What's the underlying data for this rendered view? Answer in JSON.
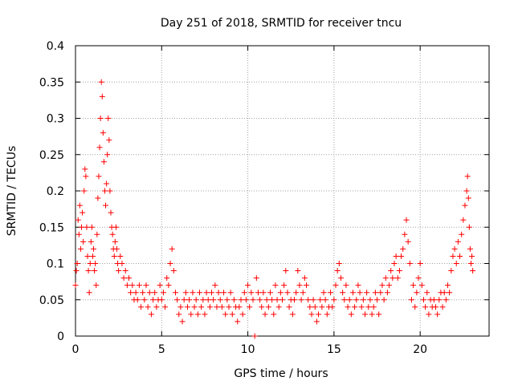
{
  "chart_data": {
    "type": "scatter",
    "title": "Day 251 of 2018, SRMTID for receiver tncu",
    "xlabel": "GPS time / hours",
    "ylabel": "SRMTID / TECUs",
    "xlim": [
      0,
      24
    ],
    "ylim": [
      0,
      0.4
    ],
    "xticks": [
      0,
      5,
      10,
      15,
      20
    ],
    "xtick_labels": [
      "0",
      "5",
      "10",
      "15",
      "20"
    ],
    "yticks": [
      0,
      0.05,
      0.1,
      0.15,
      0.2,
      0.25,
      0.3,
      0.35,
      0.4
    ],
    "ytick_labels": [
      "0",
      "0.05",
      "0.1",
      "0.15",
      "0.2",
      "0.25",
      "0.3",
      "0.35",
      "0.4"
    ],
    "grid": true,
    "marker": "plus",
    "color": "#ff0000",
    "series": [
      {
        "name": "SRMTID",
        "points": [
          [
            0.0,
            0.07
          ],
          [
            0.05,
            0.09
          ],
          [
            0.1,
            0.1
          ],
          [
            0.15,
            0.16
          ],
          [
            0.2,
            0.14
          ],
          [
            0.25,
            0.18
          ],
          [
            0.3,
            0.12
          ],
          [
            0.35,
            0.15
          ],
          [
            0.4,
            0.17
          ],
          [
            0.45,
            0.13
          ],
          [
            0.5,
            0.2
          ],
          [
            0.55,
            0.23
          ],
          [
            0.6,
            0.22
          ],
          [
            0.65,
            0.15
          ],
          [
            0.7,
            0.11
          ],
          [
            0.75,
            0.09
          ],
          [
            0.8,
            0.06
          ],
          [
            0.85,
            0.1
          ],
          [
            0.9,
            0.13
          ],
          [
            0.95,
            0.15
          ],
          [
            1.0,
            0.11
          ],
          [
            1.05,
            0.12
          ],
          [
            1.1,
            0.09
          ],
          [
            1.15,
            0.1
          ],
          [
            1.2,
            0.07
          ],
          [
            1.25,
            0.14
          ],
          [
            1.3,
            0.19
          ],
          [
            1.35,
            0.22
          ],
          [
            1.4,
            0.26
          ],
          [
            1.45,
            0.3
          ],
          [
            1.5,
            0.35
          ],
          [
            1.55,
            0.33
          ],
          [
            1.6,
            0.28
          ],
          [
            1.65,
            0.24
          ],
          [
            1.7,
            0.2
          ],
          [
            1.75,
            0.18
          ],
          [
            1.8,
            0.21
          ],
          [
            1.85,
            0.25
          ],
          [
            1.9,
            0.3
          ],
          [
            1.95,
            0.27
          ],
          [
            2.0,
            0.2
          ],
          [
            2.05,
            0.17
          ],
          [
            2.1,
            0.15
          ],
          [
            2.15,
            0.14
          ],
          [
            2.2,
            0.12
          ],
          [
            2.25,
            0.11
          ],
          [
            2.3,
            0.13
          ],
          [
            2.35,
            0.15
          ],
          [
            2.4,
            0.12
          ],
          [
            2.45,
            0.1
          ],
          [
            2.5,
            0.09
          ],
          [
            2.6,
            0.11
          ],
          [
            2.7,
            0.1
          ],
          [
            2.8,
            0.08
          ],
          [
            2.9,
            0.09
          ],
          [
            3.0,
            0.07
          ],
          [
            3.1,
            0.08
          ],
          [
            3.2,
            0.06
          ],
          [
            3.3,
            0.07
          ],
          [
            3.4,
            0.05
          ],
          [
            3.5,
            0.06
          ],
          [
            3.6,
            0.05
          ],
          [
            3.7,
            0.07
          ],
          [
            3.8,
            0.04
          ],
          [
            3.9,
            0.06
          ],
          [
            4.0,
            0.05
          ],
          [
            4.1,
            0.07
          ],
          [
            4.2,
            0.04
          ],
          [
            4.3,
            0.06
          ],
          [
            4.4,
            0.03
          ],
          [
            4.5,
            0.05
          ],
          [
            4.6,
            0.06
          ],
          [
            4.7,
            0.04
          ],
          [
            4.8,
            0.05
          ],
          [
            4.9,
            0.07
          ],
          [
            5.0,
            0.05
          ],
          [
            5.1,
            0.06
          ],
          [
            5.2,
            0.04
          ],
          [
            5.3,
            0.08
          ],
          [
            5.4,
            0.07
          ],
          [
            5.5,
            0.1
          ],
          [
            5.6,
            0.12
          ],
          [
            5.7,
            0.09
          ],
          [
            5.8,
            0.06
          ],
          [
            5.9,
            0.05
          ],
          [
            6.0,
            0.03
          ],
          [
            6.1,
            0.04
          ],
          [
            6.2,
            0.02
          ],
          [
            6.3,
            0.05
          ],
          [
            6.4,
            0.06
          ],
          [
            6.5,
            0.04
          ],
          [
            6.6,
            0.05
          ],
          [
            6.7,
            0.03
          ],
          [
            6.8,
            0.06
          ],
          [
            6.9,
            0.04
          ],
          [
            7.0,
            0.05
          ],
          [
            7.1,
            0.03
          ],
          [
            7.2,
            0.06
          ],
          [
            7.3,
            0.04
          ],
          [
            7.4,
            0.05
          ],
          [
            7.5,
            0.03
          ],
          [
            7.6,
            0.06
          ],
          [
            7.7,
            0.05
          ],
          [
            7.8,
            0.04
          ],
          [
            7.9,
            0.06
          ],
          [
            8.0,
            0.05
          ],
          [
            8.1,
            0.07
          ],
          [
            8.2,
            0.04
          ],
          [
            8.3,
            0.06
          ],
          [
            8.4,
            0.05
          ],
          [
            8.5,
            0.04
          ],
          [
            8.6,
            0.06
          ],
          [
            8.7,
            0.03
          ],
          [
            8.8,
            0.05
          ],
          [
            8.9,
            0.04
          ],
          [
            9.0,
            0.06
          ],
          [
            9.1,
            0.03
          ],
          [
            9.2,
            0.05
          ],
          [
            9.3,
            0.04
          ],
          [
            9.4,
            0.02
          ],
          [
            9.5,
            0.04
          ],
          [
            9.6,
            0.05
          ],
          [
            9.7,
            0.03
          ],
          [
            9.8,
            0.06
          ],
          [
            9.9,
            0.05
          ],
          [
            10.0,
            0.07
          ],
          [
            10.1,
            0.04
          ],
          [
            10.2,
            0.06
          ],
          [
            10.3,
            0.05
          ],
          [
            10.4,
            0.0
          ],
          [
            10.5,
            0.08
          ],
          [
            10.6,
            0.06
          ],
          [
            10.7,
            0.05
          ],
          [
            10.8,
            0.04
          ],
          [
            10.9,
            0.06
          ],
          [
            11.0,
            0.03
          ],
          [
            11.1,
            0.05
          ],
          [
            11.2,
            0.04
          ],
          [
            11.3,
            0.06
          ],
          [
            11.4,
            0.05
          ],
          [
            11.5,
            0.03
          ],
          [
            11.6,
            0.07
          ],
          [
            11.7,
            0.05
          ],
          [
            11.8,
            0.04
          ],
          [
            11.9,
            0.06
          ],
          [
            12.0,
            0.05
          ],
          [
            12.1,
            0.07
          ],
          [
            12.2,
            0.09
          ],
          [
            12.3,
            0.06
          ],
          [
            12.4,
            0.04
          ],
          [
            12.5,
            0.05
          ],
          [
            12.6,
            0.03
          ],
          [
            12.7,
            0.05
          ],
          [
            12.8,
            0.06
          ],
          [
            12.9,
            0.09
          ],
          [
            13.0,
            0.07
          ],
          [
            13.1,
            0.05
          ],
          [
            13.2,
            0.06
          ],
          [
            13.3,
            0.08
          ],
          [
            13.4,
            0.07
          ],
          [
            13.5,
            0.05
          ],
          [
            13.6,
            0.04
          ],
          [
            13.7,
            0.03
          ],
          [
            13.8,
            0.05
          ],
          [
            13.9,
            0.04
          ],
          [
            14.0,
            0.02
          ],
          [
            14.1,
            0.03
          ],
          [
            14.2,
            0.05
          ],
          [
            14.3,
            0.04
          ],
          [
            14.4,
            0.06
          ],
          [
            14.5,
            0.05
          ],
          [
            14.6,
            0.03
          ],
          [
            14.7,
            0.04
          ],
          [
            14.8,
            0.06
          ],
          [
            14.9,
            0.04
          ],
          [
            15.0,
            0.05
          ],
          [
            15.1,
            0.07
          ],
          [
            15.2,
            0.09
          ],
          [
            15.3,
            0.1
          ],
          [
            15.4,
            0.08
          ],
          [
            15.5,
            0.06
          ],
          [
            15.6,
            0.05
          ],
          [
            15.7,
            0.07
          ],
          [
            15.8,
            0.04
          ],
          [
            15.9,
            0.05
          ],
          [
            16.0,
            0.03
          ],
          [
            16.1,
            0.06
          ],
          [
            16.2,
            0.04
          ],
          [
            16.3,
            0.05
          ],
          [
            16.4,
            0.07
          ],
          [
            16.5,
            0.06
          ],
          [
            16.6,
            0.04
          ],
          [
            16.7,
            0.05
          ],
          [
            16.8,
            0.03
          ],
          [
            16.9,
            0.06
          ],
          [
            17.0,
            0.04
          ],
          [
            17.1,
            0.05
          ],
          [
            17.2,
            0.03
          ],
          [
            17.3,
            0.04
          ],
          [
            17.4,
            0.06
          ],
          [
            17.5,
            0.05
          ],
          [
            17.6,
            0.03
          ],
          [
            17.7,
            0.06
          ],
          [
            17.8,
            0.07
          ],
          [
            17.9,
            0.05
          ],
          [
            18.0,
            0.08
          ],
          [
            18.1,
            0.06
          ],
          [
            18.2,
            0.07
          ],
          [
            18.3,
            0.09
          ],
          [
            18.4,
            0.08
          ],
          [
            18.5,
            0.1
          ],
          [
            18.6,
            0.11
          ],
          [
            18.7,
            0.08
          ],
          [
            18.8,
            0.09
          ],
          [
            18.9,
            0.11
          ],
          [
            19.0,
            0.12
          ],
          [
            19.1,
            0.14
          ],
          [
            19.2,
            0.16
          ],
          [
            19.3,
            0.13
          ],
          [
            19.4,
            0.1
          ],
          [
            19.5,
            0.05
          ],
          [
            19.6,
            0.07
          ],
          [
            19.7,
            0.04
          ],
          [
            19.8,
            0.06
          ],
          [
            19.9,
            0.08
          ],
          [
            20.0,
            0.1
          ],
          [
            20.1,
            0.07
          ],
          [
            20.2,
            0.05
          ],
          [
            20.3,
            0.04
          ],
          [
            20.4,
            0.06
          ],
          [
            20.5,
            0.03
          ],
          [
            20.6,
            0.05
          ],
          [
            20.7,
            0.04
          ],
          [
            20.8,
            0.05
          ],
          [
            20.9,
            0.04
          ],
          [
            21.0,
            0.03
          ],
          [
            21.1,
            0.05
          ],
          [
            21.2,
            0.06
          ],
          [
            21.3,
            0.04
          ],
          [
            21.4,
            0.06
          ],
          [
            21.5,
            0.05
          ],
          [
            21.6,
            0.07
          ],
          [
            21.7,
            0.06
          ],
          [
            21.8,
            0.09
          ],
          [
            21.9,
            0.11
          ],
          [
            22.0,
            0.12
          ],
          [
            22.1,
            0.1
          ],
          [
            22.2,
            0.13
          ],
          [
            22.3,
            0.11
          ],
          [
            22.4,
            0.14
          ],
          [
            22.5,
            0.16
          ],
          [
            22.6,
            0.18
          ],
          [
            22.7,
            0.2
          ],
          [
            22.75,
            0.22
          ],
          [
            22.8,
            0.19
          ],
          [
            22.85,
            0.15
          ],
          [
            22.9,
            0.12
          ],
          [
            22.95,
            0.1
          ],
          [
            23.0,
            0.11
          ],
          [
            23.05,
            0.09
          ]
        ]
      }
    ]
  }
}
